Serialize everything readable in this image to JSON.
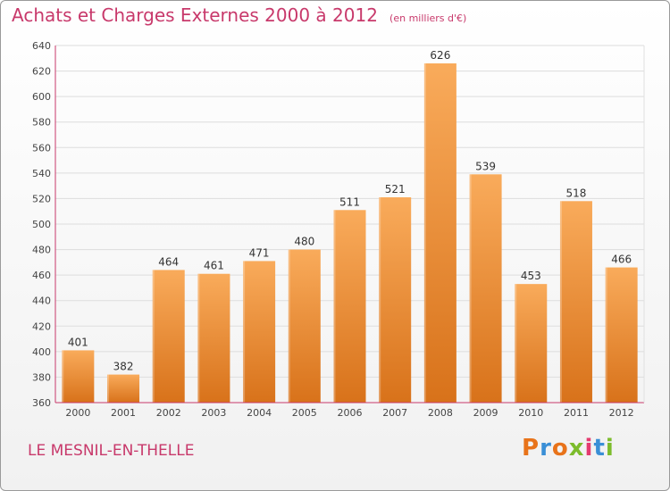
{
  "header": {
    "title": "Achats et Charges Externes 2000 à 2012",
    "unit": "(en milliers d'€)"
  },
  "footer": {
    "town": "LE MESNIL-EN-THELLE",
    "brand": "Proxiti"
  },
  "colors": {
    "title": "#c8396b",
    "bar_top": "#f9ab5b",
    "bar_bottom": "#d8721a",
    "axis": "#c8396b",
    "grid": "#dddddd",
    "brand_letters": [
      "#e8731a",
      "#3a8fd6",
      "#e8731a",
      "#7cbc2c",
      "#e43b6f",
      "#3a8fd6",
      "#7cbc2c"
    ]
  },
  "chart_data": {
    "type": "bar",
    "categories": [
      "2000",
      "2001",
      "2002",
      "2003",
      "2004",
      "2005",
      "2006",
      "2007",
      "2008",
      "2009",
      "2010",
      "2011",
      "2012"
    ],
    "values": [
      401,
      382,
      464,
      461,
      471,
      480,
      511,
      521,
      626,
      539,
      453,
      518,
      466
    ],
    "ylim": [
      360,
      640
    ],
    "yticks": [
      360,
      380,
      400,
      420,
      440,
      460,
      480,
      500,
      520,
      540,
      560,
      580,
      600,
      620,
      640
    ],
    "grid": true,
    "data_labels": true
  }
}
